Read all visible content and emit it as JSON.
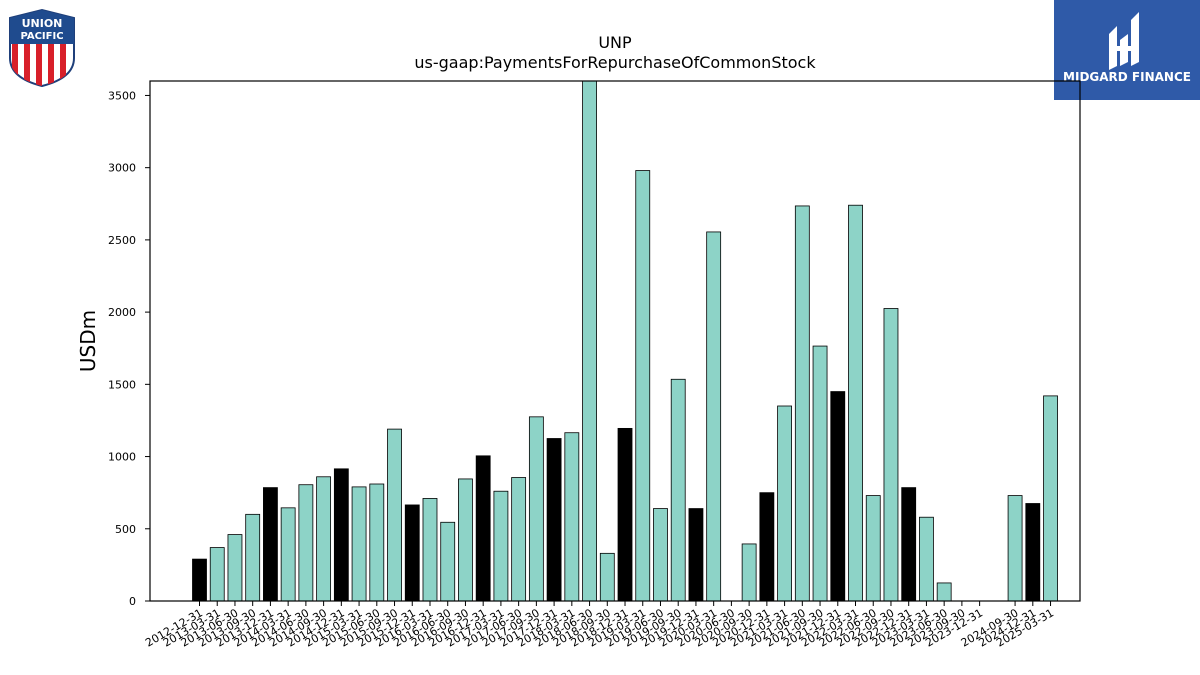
{
  "logos": {
    "left": {
      "line1": "UNION",
      "line2": "PACIFIC"
    },
    "right": {
      "name": "MIDGARD FINANCE",
      "bg_color": "#2f5aa8"
    }
  },
  "chart_data": {
    "type": "bar",
    "title": "UNP",
    "subtitle": "us-gaap:PaymentsForRepurchaseOfCommonStock",
    "xlabel": "",
    "ylabel": "USDm",
    "ylim": [
      0,
      3600
    ],
    "yticks": [
      0,
      500,
      1000,
      1500,
      2000,
      2500,
      3000,
      3500
    ],
    "grid": false,
    "colors": {
      "quarter": "#8dd3c7",
      "year_end": "#000000"
    },
    "categories": [
      "2012-12-31",
      "2013-03-31",
      "2013-06-30",
      "2013-09-30",
      "2013-12-31",
      "2014-03-31",
      "2014-06-30",
      "2014-09-30",
      "2014-12-31",
      "2015-03-31",
      "2015-06-30",
      "2015-09-30",
      "2015-12-31",
      "2016-03-31",
      "2016-06-30",
      "2016-09-30",
      "2016-12-31",
      "2017-03-31",
      "2017-06-30",
      "2017-09-30",
      "2017-12-31",
      "2018-03-31",
      "2018-06-30",
      "2018-09-30",
      "2018-12-31",
      "2019-03-31",
      "2019-06-30",
      "2019-09-30",
      "2019-12-31",
      "2020-03-31",
      "2020-06-30",
      "2020-09-30",
      "2020-12-31",
      "2021-03-31",
      "2021-06-30",
      "2021-09-30",
      "2021-12-31",
      "2022-03-31",
      "2022-06-30",
      "2022-09-30",
      "2022-12-31",
      "2023-03-31",
      "2023-06-30",
      "2023-09-30",
      "2023-12-31",
      "2024-09-30",
      "2024-12-31",
      "2025-03-31"
    ],
    "values": [
      290,
      370,
      460,
      600,
      785,
      645,
      805,
      860,
      915,
      790,
      810,
      1190,
      665,
      710,
      545,
      845,
      1005,
      760,
      855,
      1275,
      1125,
      1165,
      3600,
      330,
      1195,
      2980,
      640,
      1535,
      640,
      2555,
      0,
      395,
      750,
      1350,
      2735,
      1765,
      1450,
      2740,
      730,
      2025,
      785,
      580,
      125,
      0,
      0,
      730,
      675,
      1420
    ],
    "year_end": [
      true,
      false,
      false,
      false,
      true,
      false,
      false,
      false,
      true,
      false,
      false,
      false,
      true,
      false,
      false,
      false,
      true,
      false,
      false,
      false,
      true,
      false,
      false,
      false,
      true,
      false,
      false,
      false,
      true,
      false,
      false,
      false,
      true,
      false,
      false,
      false,
      true,
      false,
      false,
      false,
      true,
      false,
      false,
      false,
      true,
      false,
      true,
      false
    ],
    "gaps_after": {
      "44": 1
    }
  }
}
